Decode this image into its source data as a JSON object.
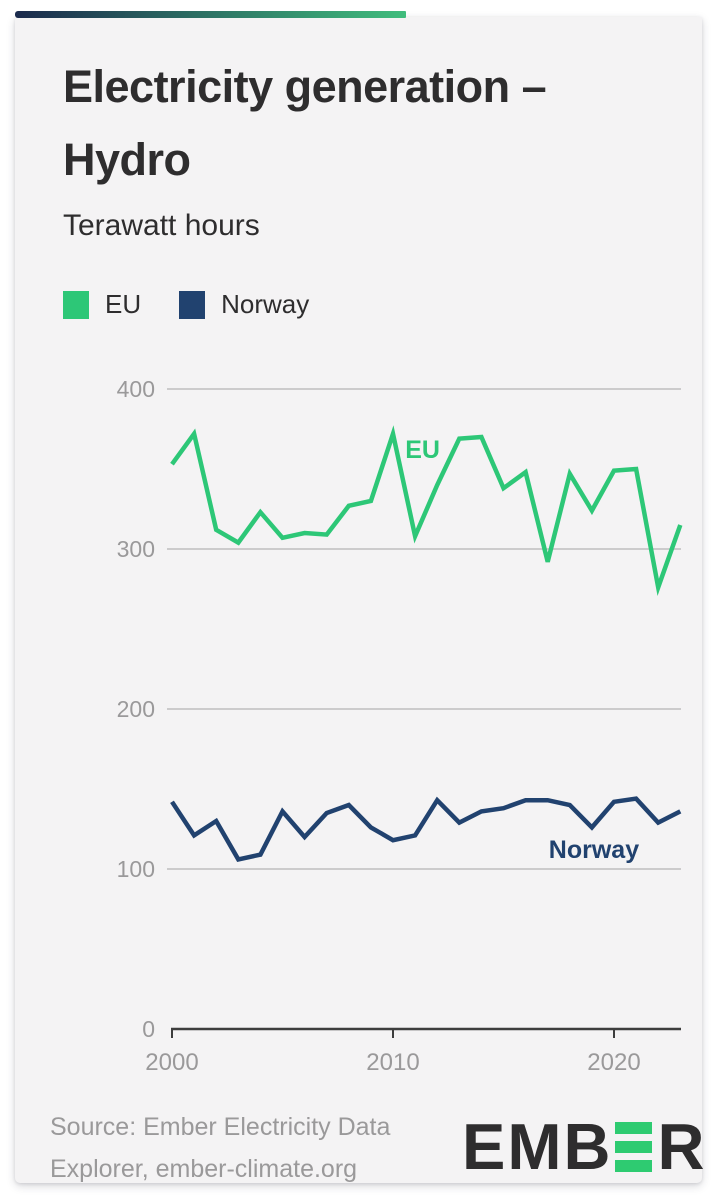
{
  "header": {
    "title": "Electricity generation – Hydro",
    "subtitle": "Terawatt hours"
  },
  "colors": {
    "topbar_start": "#1b2a4d",
    "topbar_end": "#40bd7d",
    "card_bg": "#f4f3f4",
    "title_text": "#2e2d2e",
    "muted_text": "#9a999a",
    "grid_line": "#cccbcc",
    "axis_line": "#3d3d3d",
    "tick_label": "#9a999a",
    "eu_green": "#2dc777",
    "norway_navy": "#21426f",
    "logo_green": "#2ecb71",
    "logo_dark": "#2e2d2e"
  },
  "chart_data": {
    "type": "line",
    "title": "Electricity generation – Hydro",
    "ylabel": "Terawatt hours",
    "x": [
      2000,
      2001,
      2002,
      2003,
      2004,
      2005,
      2006,
      2007,
      2008,
      2009,
      2010,
      2011,
      2012,
      2013,
      2014,
      2015,
      2016,
      2017,
      2018,
      2019,
      2020,
      2021,
      2022,
      2023
    ],
    "series": [
      {
        "name": "EU",
        "color": "#2dc777",
        "values": [
          353,
          372,
          312,
          304,
          323,
          307,
          310,
          309,
          327,
          330,
          372,
          308,
          340,
          369,
          370,
          338,
          348,
          292,
          347,
          324,
          349,
          350,
          276,
          315
        ]
      },
      {
        "name": "Norway",
        "color": "#21426f",
        "values": [
          142,
          121,
          130,
          106,
          109,
          136,
          120,
          135,
          140,
          126,
          118,
          121,
          143,
          129,
          136,
          138,
          143,
          143,
          140,
          126,
          142,
          144,
          129,
          136
        ]
      }
    ],
    "ylim": [
      0,
      430
    ],
    "yticks": [
      0,
      100,
      200,
      300,
      400
    ],
    "xticks": [
      2000,
      2010,
      2020
    ],
    "grid": "horizontal-only",
    "legend_position": "top-left",
    "annotations": [
      {
        "text": "EU",
        "series": "EU",
        "year": 2010.55,
        "value": 357
      },
      {
        "text": "Norway",
        "series": "Norway",
        "year": 2017.05,
        "value": 107
      }
    ]
  },
  "footer": {
    "source_line1": "Source: Ember Electricity Data",
    "source_line2": "Explorer, ember-climate.org",
    "logo_text_left": "EMB",
    "logo_text_right": "R"
  }
}
